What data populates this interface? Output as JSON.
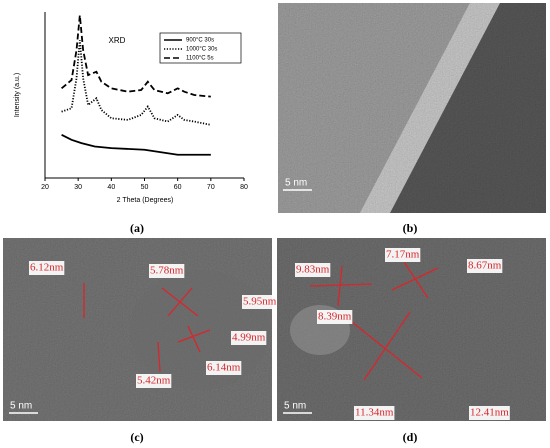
{
  "chart_data": {
    "type": "line",
    "title": "XRD",
    "x_label": "2 Theta (Degrees)",
    "y_label": "Intensity (a.u.)",
    "xlim": [
      20,
      80
    ],
    "xticks": [
      20,
      30,
      40,
      50,
      60,
      70,
      80
    ],
    "ylim": [
      0,
      100
    ],
    "series": [
      {
        "name": "900°C 30s",
        "dash": "solid",
        "color": "#000000",
        "x": [
          25,
          28,
          31,
          35,
          40,
          50,
          60,
          70
        ],
        "values": [
          26,
          23,
          21,
          19,
          18,
          17,
          14,
          14
        ]
      },
      {
        "name": "1000°C 30s",
        "dash": "dotted",
        "color": "#000000",
        "x": [
          25,
          28,
          29.5,
          30.5,
          31.5,
          33,
          35.5,
          37,
          40,
          45,
          49,
          51,
          53,
          57,
          60,
          62,
          65,
          70
        ],
        "values": [
          40,
          42,
          60,
          83,
          60,
          44,
          48,
          41,
          36,
          35,
          38,
          43,
          36,
          34,
          38,
          35,
          34,
          32
        ]
      },
      {
        "name": "1100°C 5s",
        "dash": "dashed",
        "color": "#000000",
        "x": [
          25,
          28,
          29.5,
          30.5,
          31.5,
          33,
          35.5,
          37,
          40,
          45,
          49,
          51,
          53,
          57,
          60,
          62,
          65,
          70
        ],
        "values": [
          54,
          59,
          77,
          98,
          77,
          62,
          64,
          58,
          54,
          52,
          53,
          58,
          53,
          51,
          54,
          52,
          50,
          49
        ]
      }
    ]
  },
  "panel_labels": [
    "(a)",
    "(b)",
    "(c)",
    "(d)"
  ],
  "images": [
    {
      "scale_bar": "5 nm"
    },
    {
      "scale_bar": "5 nm",
      "annotations": [
        "6.12nm",
        "5.78nm",
        "5.95nm",
        "4.99nm",
        "5.42nm",
        "6.14nm"
      ]
    },
    {
      "scale_bar": "5 nm",
      "annotations": [
        "9.83nm",
        "7.17nm",
        "8.67nm",
        "8.39nm",
        "11.34nm",
        "12.41nm"
      ]
    }
  ]
}
